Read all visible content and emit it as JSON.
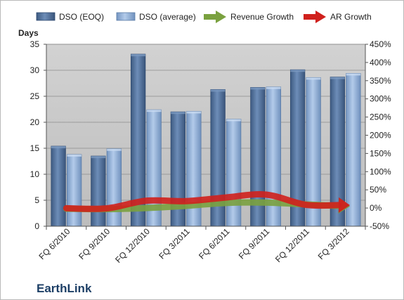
{
  "chart_data": {
    "type": "bar",
    "categories": [
      "FQ 6/2010",
      "FQ 9/2010",
      "FQ 12/2010",
      "FQ 3/2011",
      "FQ 6/2011",
      "FQ 9/2011",
      "FQ 12/2011",
      "FQ 3/2012"
    ],
    "series": [
      {
        "name": "DSO (EOQ)",
        "kind": "bar",
        "axis": "left",
        "color": "#4f6f9a",
        "values": [
          15.4,
          13.5,
          33.1,
          22.0,
          26.3,
          26.7,
          30.1,
          28.7
        ]
      },
      {
        "name": "DSO (average)",
        "kind": "bar",
        "axis": "left",
        "color": "#8faed6",
        "values": [
          13.8,
          14.9,
          22.4,
          22.1,
          20.6,
          26.8,
          28.6,
          29.4
        ]
      },
      {
        "name": "Revenue Growth",
        "kind": "arrow-line",
        "axis": "right",
        "color": "#7aa13f",
        "values": [
          -0.02,
          -0.03,
          0.0,
          0.06,
          0.14,
          0.15,
          0.1,
          0.05
        ]
      },
      {
        "name": "AR Growth",
        "kind": "arrow-line",
        "axis": "right",
        "color": "#d0201c",
        "values": [
          -0.005,
          -0.01,
          0.2,
          0.19,
          0.29,
          0.37,
          0.09,
          0.08
        ]
      }
    ],
    "ylabel": "Days",
    "ylim": [
      0,
      35
    ],
    "y_ticks": [
      "0",
      "5",
      "10",
      "15",
      "20",
      "25",
      "30",
      "35"
    ],
    "y2lim": [
      -0.5,
      4.5
    ],
    "y2_ticks": [
      "-50%",
      "0%",
      "50%",
      "100%",
      "150%",
      "200%",
      "250%",
      "300%",
      "350%",
      "400%",
      "450%"
    ],
    "grid": true,
    "legend": "top",
    "plot_background": "#c8c8c8",
    "company": "EarthLink"
  }
}
